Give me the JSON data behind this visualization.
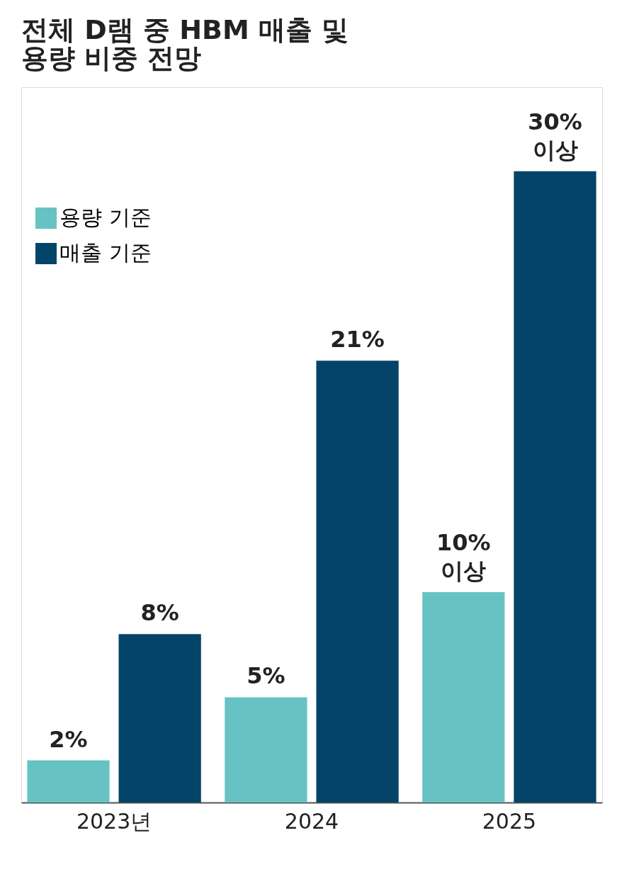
{
  "chart_data": {
    "type": "bar",
    "title": "전체 D램 중 HBM 매출 및\n용량 비중 전망",
    "categories": [
      "2023년",
      "2024",
      "2025"
    ],
    "series": [
      {
        "name": "용량 기준",
        "color": "#67c3c3",
        "values": [
          2,
          5,
          10
        ],
        "value_labels": [
          "2%",
          "5%",
          "10%\n이상"
        ]
      },
      {
        "name": "매출 기준",
        "color": "#034468",
        "values": [
          8,
          21,
          30
        ],
        "value_labels": [
          "8%",
          "21%",
          "30%\n이상"
        ]
      }
    ],
    "ylim": [
      0,
      34
    ],
    "tick_labels": "x",
    "grid": false,
    "legend": "top left"
  }
}
